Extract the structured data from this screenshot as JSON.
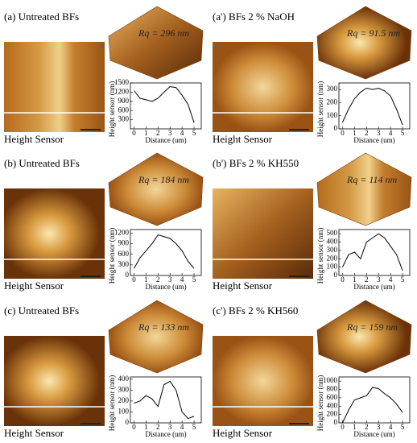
{
  "chart_data": [
    {
      "type": "line",
      "title": "(a) Untreated BFs",
      "annotation": "Rq = 296 nm",
      "caption": "Height Sensor",
      "x_label": "Distance (um)",
      "y_label": "Height sensor (nm)",
      "color": "#000000",
      "x": [
        0,
        0.5,
        1,
        1.5,
        2,
        2.5,
        3,
        3.5,
        4,
        4.5,
        5
      ],
      "values": [
        1250,
        1000,
        950,
        900,
        1000,
        1200,
        1380,
        1350,
        1100,
        800,
        200
      ],
      "xlim": [
        -0.3,
        5.6
      ],
      "ylim": [
        0,
        1500
      ],
      "xticks": [
        0,
        1,
        2,
        3,
        4,
        5
      ],
      "yticks": [
        300,
        600,
        900,
        1200,
        1500
      ]
    },
    {
      "type": "line",
      "title": "(a') BFs 2 % NaOH",
      "annotation": "Rq = 91.5 nm",
      "caption": "Height Sensor",
      "x_label": "Distance (um)",
      "y_label": "Height sensor (nm)",
      "color": "#000000",
      "x": [
        0,
        0.5,
        1,
        1.5,
        2,
        2.5,
        3,
        3.5,
        4,
        4.5,
        5
      ],
      "values": [
        50,
        150,
        230,
        280,
        310,
        300,
        310,
        290,
        250,
        150,
        30
      ],
      "xlim": [
        -0.3,
        5.6
      ],
      "ylim": [
        0,
        350
      ],
      "xticks": [
        0,
        1,
        2,
        3,
        4,
        5
      ],
      "yticks": [
        0,
        100,
        200,
        300
      ]
    },
    {
      "type": "line",
      "title": "(b) Untreated BFs",
      "annotation": "Rq = 184 nm",
      "caption": "Height Sensor",
      "x_label": "Distance (um)",
      "y_label": "Height sensor (nm)",
      "color": "#000000",
      "x": [
        0,
        0.5,
        1,
        1.5,
        2,
        2.5,
        3,
        3.5,
        4,
        4.5,
        5
      ],
      "values": [
        200,
        500,
        700,
        900,
        1150,
        1100,
        1050,
        900,
        700,
        400,
        200
      ],
      "xlim": [
        -0.3,
        5.6
      ],
      "ylim": [
        0,
        1300
      ],
      "xticks": [
        0,
        1,
        2,
        3,
        4,
        5
      ],
      "yticks": [
        0,
        300,
        600,
        900,
        1200
      ]
    },
    {
      "type": "line",
      "title": "(b') BFs 2 % KH550",
      "annotation": "Rq = 114 nm",
      "caption": "Height Sensor",
      "x_label": "Distance (um)",
      "y_label": "Height sensor (nm)",
      "color": "#000000",
      "x": [
        0,
        0.5,
        1,
        1.5,
        2,
        2.5,
        3,
        3.5,
        4,
        4.5,
        5
      ],
      "values": [
        100,
        250,
        280,
        200,
        400,
        450,
        500,
        450,
        350,
        250,
        60
      ],
      "xlim": [
        -0.3,
        5.6
      ],
      "ylim": [
        0,
        550
      ],
      "xticks": [
        0,
        1,
        2,
        3,
        4,
        5
      ],
      "yticks": [
        0,
        100,
        200,
        300,
        400,
        500
      ]
    },
    {
      "type": "line",
      "title": "(c) Untreated BFs",
      "annotation": "Rq = 133 nm",
      "caption": "Height Sensor",
      "x_label": "Distance (um)",
      "y_label": "Height sensor (nm)",
      "color": "#000000",
      "x": [
        0,
        0.5,
        1,
        1.5,
        2,
        2.5,
        3,
        3.5,
        4,
        4.5,
        5
      ],
      "values": [
        180,
        200,
        250,
        220,
        150,
        350,
        380,
        300,
        100,
        40,
        60
      ],
      "xlim": [
        -0.3,
        5.6
      ],
      "ylim": [
        0,
        420
      ],
      "xticks": [
        0,
        1,
        2,
        3,
        4,
        5
      ],
      "yticks": [
        0,
        100,
        200,
        300,
        400
      ]
    },
    {
      "type": "line",
      "title": "(c') BFs 2 % KH560",
      "annotation": "Rq = 159 nm",
      "caption": "Height Sensor",
      "x_label": "Distance (um)",
      "y_label": "Height sensor (nm)",
      "color": "#000000",
      "x": [
        0,
        0.5,
        1,
        1.5,
        2,
        2.5,
        3,
        3.5,
        4,
        4.5,
        5
      ],
      "values": [
        0,
        300,
        550,
        600,
        650,
        850,
        820,
        700,
        600,
        450,
        250
      ],
      "xlim": [
        -0.3,
        5.6
      ],
      "ylim": [
        0,
        1100
      ],
      "xticks": [
        0,
        1,
        2,
        3,
        4,
        5
      ],
      "yticks": [
        0,
        200,
        400,
        600,
        800,
        1000
      ]
    }
  ]
}
